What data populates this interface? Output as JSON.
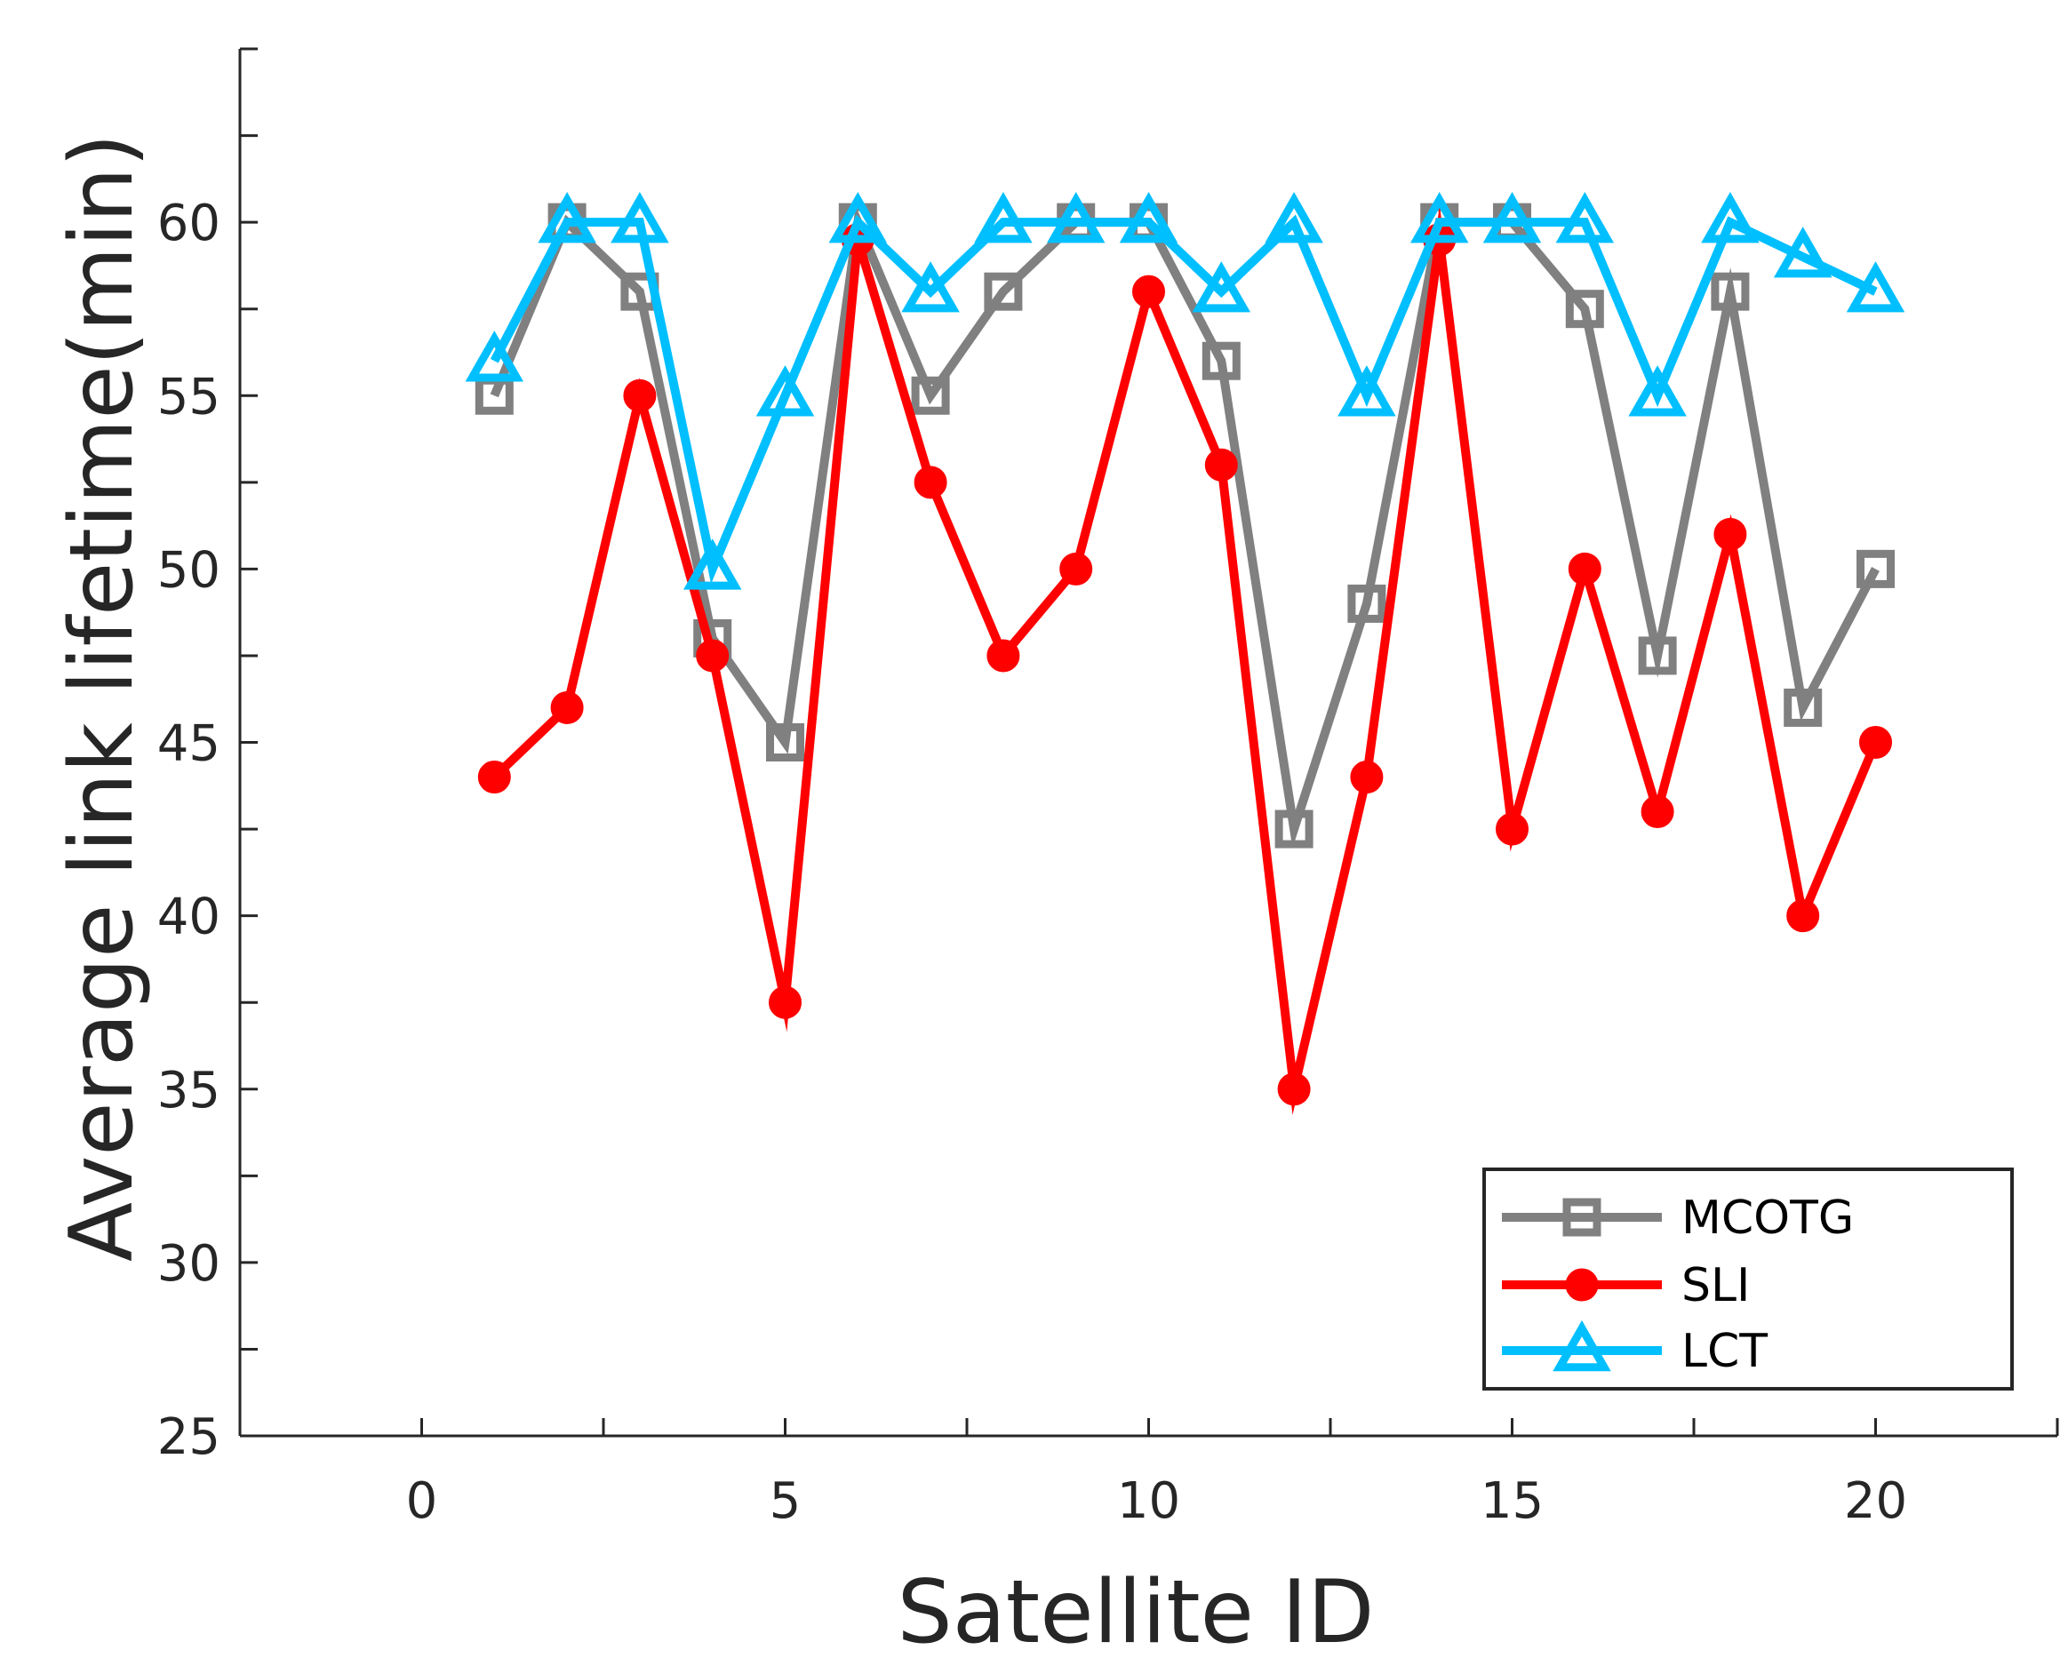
{
  "chart_data": {
    "type": "line",
    "xlabel": "Satellite ID",
    "ylabel": "Average link lifetime(min)",
    "xlim": [
      -2.5,
      22.5
    ],
    "ylim": [
      25,
      65
    ],
    "xticks_labeled": [
      0,
      5,
      10,
      15,
      20
    ],
    "xticks_minor": [
      2.5,
      7.5,
      12.5,
      17.5,
      22.5
    ],
    "yticks_labeled": [
      25,
      30,
      35,
      40,
      45,
      50,
      55,
      60
    ],
    "yticks_minor": [
      27.5,
      32.5,
      37.5,
      42.5,
      47.5,
      52.5,
      57.5,
      62.5,
      65
    ],
    "x": [
      1,
      2,
      3,
      4,
      5,
      6,
      7,
      8,
      9,
      10,
      11,
      12,
      13,
      14,
      15,
      16,
      17,
      18,
      19,
      20
    ],
    "series": [
      {
        "name": "MCOTG",
        "color": "#808080",
        "marker": "square",
        "values": [
          55,
          60,
          58,
          48,
          45,
          60,
          55,
          58,
          60,
          60,
          56,
          42.5,
          49,
          60,
          60,
          57.5,
          47.5,
          58,
          46,
          50
        ]
      },
      {
        "name": "SLI",
        "color": "#ff0000",
        "marker": "circle",
        "values": [
          44,
          46,
          55,
          47.5,
          37.5,
          59.5,
          52.5,
          47.5,
          50,
          58,
          53,
          35,
          44,
          59.5,
          42.5,
          50,
          43,
          51,
          40,
          45
        ]
      },
      {
        "name": "LCT",
        "color": "#00bfff",
        "marker": "triangle",
        "values": [
          56,
          60,
          60,
          50,
          55,
          60,
          58,
          60,
          60,
          60,
          58,
          60,
          55,
          60,
          60,
          60,
          55,
          60,
          59,
          58
        ]
      }
    ],
    "legend": {
      "position": "bottom-right",
      "entries": [
        "MCOTG",
        "SLI",
        "LCT"
      ]
    }
  }
}
